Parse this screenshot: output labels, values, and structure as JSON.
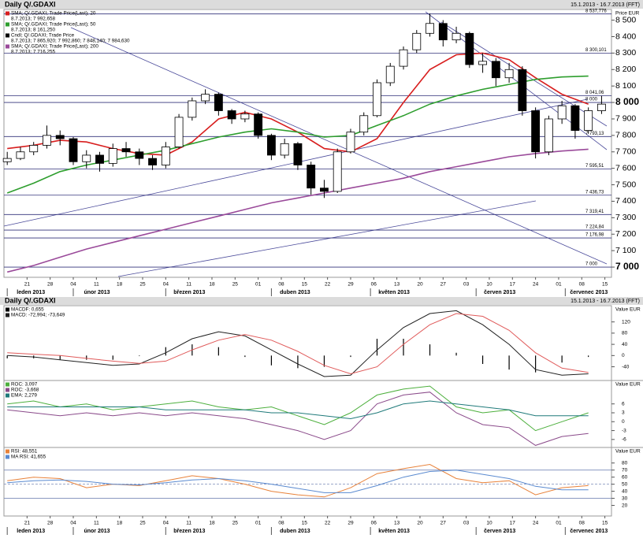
{
  "chart_data": [
    {
      "type": "candlestick",
      "title": "Daily Q/.GDAXI",
      "subtitle": "15.1.2013 - 16.7.2013 (FFT)",
      "y_label": "Price EUR",
      "candle_name": "Cndl; Q/.GDAXI; Trade Price",
      "candle_last": "8.7.2013; 7 865,920; 7 992,860; 7 848,140; 7 984,630",
      "up_color": "#ffffff",
      "down_color": "#000000",
      "x": [
        0,
        4,
        8,
        12,
        16,
        20,
        24,
        28,
        32,
        36,
        40,
        44,
        48,
        52,
        56,
        60,
        64,
        68,
        72,
        76,
        80,
        84,
        88,
        92,
        96,
        100,
        104,
        108,
        112,
        116,
        120,
        124,
        128,
        132,
        136,
        140,
        144,
        148,
        152,
        156,
        160,
        164,
        168,
        172,
        176,
        180
      ],
      "open": [
        7640,
        7660,
        7700,
        7740,
        7800,
        7780,
        7640,
        7680,
        7630,
        7720,
        7700,
        7660,
        7620,
        7730,
        7910,
        8010,
        8050,
        7950,
        7900,
        7930,
        7800,
        7680,
        7750,
        7620,
        7480,
        7460,
        7700,
        7820,
        7920,
        8120,
        8220,
        8320,
        8420,
        8480,
        8380,
        8420,
        8230,
        8250,
        8150,
        8200,
        7950,
        7700,
        7900,
        7980,
        7830,
        7950
      ],
      "high": [
        7700,
        7730,
        7760,
        7860,
        7830,
        7790,
        7710,
        7700,
        7750,
        7760,
        7720,
        7680,
        7760,
        7930,
        8030,
        8080,
        8060,
        7960,
        7950,
        7940,
        7810,
        7780,
        7760,
        7640,
        7530,
        7720,
        7840,
        7940,
        8140,
        8240,
        8340,
        8440,
        8540,
        8500,
        8460,
        8430,
        8300,
        8270,
        8240,
        8220,
        7970,
        7920,
        8010,
        7990,
        7970,
        8040
      ],
      "low": [
        7620,
        7650,
        7680,
        7720,
        7740,
        7620,
        7600,
        7580,
        7610,
        7670,
        7620,
        7590,
        7600,
        7720,
        7890,
        7990,
        7920,
        7870,
        7880,
        7780,
        7650,
        7660,
        7590,
        7440,
        7420,
        7450,
        7690,
        7800,
        7910,
        8100,
        8200,
        8300,
        8400,
        8340,
        8360,
        8210,
        8180,
        8100,
        8120,
        7920,
        7660,
        7680,
        7870,
        7780,
        7810,
        7930
      ],
      "close": [
        7660,
        7700,
        7740,
        7800,
        7780,
        7640,
        7680,
        7630,
        7720,
        7700,
        7660,
        7620,
        7730,
        7910,
        8010,
        8050,
        7950,
        7900,
        7930,
        7800,
        7680,
        7750,
        7620,
        7480,
        7460,
        7700,
        7820,
        7920,
        8120,
        8220,
        8320,
        8420,
        8480,
        8380,
        8420,
        8230,
        8250,
        8150,
        8200,
        7950,
        7700,
        7900,
        7980,
        7830,
        7950,
        7990
      ],
      "overlay_x": [
        0,
        8,
        16,
        24,
        32,
        40,
        48,
        56,
        64,
        72,
        80,
        88,
        96,
        104,
        112,
        120,
        128,
        136,
        144,
        152,
        160,
        168,
        176
      ],
      "overlays": [
        {
          "name": "SMA; Q/.GDAXI; Trade Price(Last); 20",
          "last": "8.7.2013; 7 992,658",
          "color": "#d81e1e",
          "values": [
            7720,
            7740,
            7770,
            7760,
            7720,
            7690,
            7680,
            7760,
            7900,
            7940,
            7900,
            7820,
            7720,
            7700,
            7780,
            8000,
            8200,
            8290,
            8300,
            8260,
            8150,
            8050,
            7990
          ]
        },
        {
          "name": "SMA; Q/.GDAXI; Trade Price(Last); 50",
          "last": "8.7.2013; 8 161,250",
          "color": "#2e9e2e",
          "values": [
            7450,
            7510,
            7580,
            7620,
            7650,
            7680,
            7710,
            7750,
            7790,
            7820,
            7840,
            7820,
            7790,
            7800,
            7860,
            7920,
            7990,
            8040,
            8080,
            8110,
            8140,
            8155,
            8160
          ]
        },
        {
          "name": "SMA; Q/.GDAXI; Trade Price(Last); 200",
          "last": "8.7.2013; 7 716,255",
          "color": "#9a4a9a",
          "values": [
            6970,
            7010,
            7060,
            7110,
            7150,
            7190,
            7230,
            7270,
            7310,
            7350,
            7390,
            7420,
            7450,
            7480,
            7510,
            7540,
            7580,
            7610,
            7640,
            7670,
            7690,
            7705,
            7716
          ]
        }
      ],
      "levels": [
        {
          "value": 8537.776,
          "label": "8 537,776"
        },
        {
          "value": 8300.101,
          "label": "8 300,101"
        },
        {
          "value": 8041.06,
          "label": "8 041,06"
        },
        {
          "value": 8000,
          "label": "8 000"
        },
        {
          "value": 7793.13,
          "label": "7 793,13"
        },
        {
          "value": 7595.51,
          "label": "7 595,51"
        },
        {
          "value": 7436.73,
          "label": "7 436,73"
        },
        {
          "value": 7319.41,
          "label": "7 319,41"
        },
        {
          "value": 7224.84,
          "label": "7 224,84"
        },
        {
          "value": 7176.98,
          "label": "7 176,98"
        },
        {
          "value": 7000,
          "label": "7 000"
        }
      ],
      "ylim": [
        6938,
        8565
      ],
      "yticks": [
        {
          "value": 7000,
          "label": "7 000"
        },
        {
          "value": 7100,
          "label": "7 100"
        },
        {
          "value": 7200,
          "label": "7 200"
        },
        {
          "value": 7300,
          "label": "7 300"
        },
        {
          "value": 7400,
          "label": "7 400"
        },
        {
          "value": 7500,
          "label": "7 500"
        },
        {
          "value": 7600,
          "label": "7 600"
        },
        {
          "value": 7700,
          "label": "7 700"
        },
        {
          "value": 7800,
          "label": "7 800"
        },
        {
          "value": 7900,
          "label": "7 900"
        },
        {
          "value": 8000,
          "label": "8 000"
        },
        {
          "value": 8100,
          "label": "8 100"
        },
        {
          "value": 8200,
          "label": "8 200"
        },
        {
          "value": 8300,
          "label": "8 300"
        },
        {
          "value": 8400,
          "label": "8 400"
        },
        {
          "value": 8500,
          "label": "8 500"
        }
      ],
      "xlim": [
        -1,
        183
      ],
      "xticks": [
        {
          "value": 6,
          "label": "21"
        },
        {
          "value": 13,
          "label": "28"
        },
        {
          "value": 20,
          "label": "04"
        },
        {
          "value": 27,
          "label": "11"
        },
        {
          "value": 34,
          "label": "18"
        },
        {
          "value": 41,
          "label": "25"
        },
        {
          "value": 48,
          "label": "04"
        },
        {
          "value": 55,
          "label": "11"
        },
        {
          "value": 62,
          "label": "18"
        },
        {
          "value": 69,
          "label": "25"
        },
        {
          "value": 76,
          "label": "01"
        },
        {
          "value": 83,
          "label": "08"
        },
        {
          "value": 90,
          "label": "15"
        },
        {
          "value": 97,
          "label": "22"
        },
        {
          "value": 104,
          "label": "29"
        },
        {
          "value": 111,
          "label": "06"
        },
        {
          "value": 118,
          "label": "13"
        },
        {
          "value": 125,
          "label": "20"
        },
        {
          "value": 132,
          "label": "27"
        },
        {
          "value": 139,
          "label": "03"
        },
        {
          "value": 146,
          "label": "10"
        },
        {
          "value": 153,
          "label": "17"
        },
        {
          "value": 160,
          "label": "24"
        },
        {
          "value": 167,
          "label": "01"
        },
        {
          "value": 174,
          "label": "08"
        },
        {
          "value": 181,
          "label": "15"
        }
      ],
      "month_ticks": [
        {
          "value": 0,
          "label": "leden 2013"
        },
        {
          "value": 20,
          "label": "únor 2013"
        },
        {
          "value": 48,
          "label": "březen 2013"
        },
        {
          "value": 80,
          "label": "duben 2013"
        },
        {
          "value": 110,
          "label": "květen 2013"
        },
        {
          "value": 142,
          "label": "červen 2013"
        },
        {
          "value": 169,
          "label": "červenec 2013"
        }
      ]
    },
    {
      "type": "line",
      "title": "Daily Q/.GDAXI",
      "subtitle": "15.1.2013 - 16.7.2013 (FFT)",
      "y_label": "Value EUR",
      "x": [
        0,
        8,
        16,
        24,
        32,
        40,
        48,
        56,
        64,
        72,
        80,
        88,
        96,
        104,
        112,
        120,
        128,
        136,
        144,
        152,
        160,
        168,
        176
      ],
      "series": [
        {
          "name": "MACDF: 0,655",
          "color": "#000000",
          "style": "bar",
          "values": [
            -10,
            -10,
            -15,
            -15,
            -15,
            -2,
            30,
            40,
            30,
            -5,
            -35,
            -45,
            -40,
            -5,
            60,
            60,
            40,
            10,
            -30,
            -50,
            -60,
            -25,
            -5
          ]
        },
        {
          "name": "MACD: -72,994; -73,649",
          "color": "#202020",
          "values": [
            0,
            -5,
            -15,
            -25,
            -35,
            -30,
            10,
            60,
            85,
            70,
            20,
            -30,
            -75,
            -70,
            20,
            100,
            150,
            160,
            110,
            40,
            -50,
            -70,
            -65
          ]
        },
        {
          "color": "#e05a5a",
          "values": [
            10,
            5,
            0,
            -10,
            -20,
            -28,
            -20,
            20,
            55,
            75,
            55,
            15,
            -35,
            -65,
            -40,
            40,
            110,
            150,
            140,
            90,
            10,
            -45,
            -60
          ]
        }
      ],
      "ylim": [
        -89,
        178
      ],
      "yticks": [
        120,
        80,
        40,
        0,
        -40
      ],
      "xlim": [
        -1,
        183
      ]
    },
    {
      "type": "line",
      "y_label": "Value EUR",
      "x": [
        0,
        8,
        16,
        24,
        32,
        40,
        48,
        56,
        64,
        72,
        80,
        88,
        96,
        104,
        112,
        120,
        128,
        136,
        144,
        152,
        160,
        168,
        176
      ],
      "series": [
        {
          "name": "ROC: 3,097",
          "color": "#4caf3c",
          "values": [
            6,
            7,
            5,
            6,
            4,
            5,
            6,
            7,
            5,
            4,
            5,
            2,
            -1,
            3,
            9,
            11,
            12,
            5,
            3,
            4,
            -3,
            0,
            3
          ]
        },
        {
          "name": "ROC: -3,668",
          "color": "#8a4a8a",
          "values": [
            4,
            3,
            2,
            3,
            2,
            3,
            2,
            3,
            2,
            1,
            -1,
            -3,
            -6,
            -3,
            6,
            9,
            10,
            3,
            -1,
            -2,
            -8,
            -5,
            -4
          ]
        },
        {
          "name": "EMA: 2,279",
          "color": "#1f7a7a",
          "values": [
            5,
            5,
            5,
            5,
            5,
            5,
            4,
            4,
            4,
            4,
            3,
            3,
            2,
            1,
            3,
            6,
            7,
            6,
            5,
            4,
            2,
            2,
            2
          ]
        }
      ],
      "ylim": [
        -8.7,
        13.9
      ],
      "yticks": [
        6,
        3,
        0,
        -3,
        -6
      ],
      "xlim": [
        -1,
        183
      ]
    },
    {
      "type": "line",
      "y_label": "Value EUR",
      "x": [
        0,
        8,
        16,
        24,
        32,
        40,
        48,
        56,
        64,
        72,
        80,
        88,
        96,
        104,
        112,
        120,
        128,
        136,
        144,
        152,
        160,
        168,
        176
      ],
      "series": [
        {
          "name": "RSI: 48,551",
          "color": "#e8823a",
          "values": [
            55,
            60,
            58,
            45,
            50,
            48,
            55,
            62,
            58,
            50,
            40,
            35,
            32,
            45,
            65,
            72,
            78,
            58,
            52,
            55,
            35,
            45,
            48
          ]
        },
        {
          "name": "MA RSI: 41,655",
          "color": "#5a8ad0",
          "values": [
            52,
            55,
            56,
            54,
            50,
            49,
            52,
            56,
            58,
            55,
            50,
            44,
            38,
            38,
            48,
            60,
            68,
            70,
            64,
            58,
            47,
            42,
            42
          ]
        }
      ],
      "reference_lines": [
        70,
        50,
        30
      ],
      "ylim": [
        5,
        102
      ],
      "yticks": [
        80,
        70,
        60,
        50,
        40,
        30,
        20
      ],
      "xlim": [
        -1,
        183
      ],
      "xticks": [
        {
          "value": 6,
          "label": "21"
        },
        {
          "value": 13,
          "label": "28"
        },
        {
          "value": 20,
          "label": "04"
        },
        {
          "value": 27,
          "label": "11"
        },
        {
          "value": 34,
          "label": "18"
        },
        {
          "value": 41,
          "label": "25"
        },
        {
          "value": 48,
          "label": "04"
        },
        {
          "value": 55,
          "label": "11"
        },
        {
          "value": 62,
          "label": "18"
        },
        {
          "value": 69,
          "label": "25"
        },
        {
          "value": 76,
          "label": "01"
        },
        {
          "value": 83,
          "label": "08"
        },
        {
          "value": 90,
          "label": "15"
        },
        {
          "value": 97,
          "label": "22"
        },
        {
          "value": 104,
          "label": "29"
        },
        {
          "value": 111,
          "label": "06"
        },
        {
          "value": 118,
          "label": "13"
        },
        {
          "value": 125,
          "label": "20"
        },
        {
          "value": 132,
          "label": "27"
        },
        {
          "value": 139,
          "label": "03"
        },
        {
          "value": 146,
          "label": "10"
        },
        {
          "value": 153,
          "label": "17"
        },
        {
          "value": 160,
          "label": "24"
        },
        {
          "value": 167,
          "label": "01"
        },
        {
          "value": 174,
          "label": "08"
        },
        {
          "value": 181,
          "label": "15"
        }
      ],
      "month_ticks": [
        {
          "value": 0,
          "label": "leden 2013"
        },
        {
          "value": 20,
          "label": "únor 2013"
        },
        {
          "value": 48,
          "label": "březen 2013"
        },
        {
          "value": 80,
          "label": "duben 2013"
        },
        {
          "value": 110,
          "label": "květen 2013"
        },
        {
          "value": 142,
          "label": "červen 2013"
        },
        {
          "value": 169,
          "label": "červenec 2013"
        }
      ]
    }
  ]
}
